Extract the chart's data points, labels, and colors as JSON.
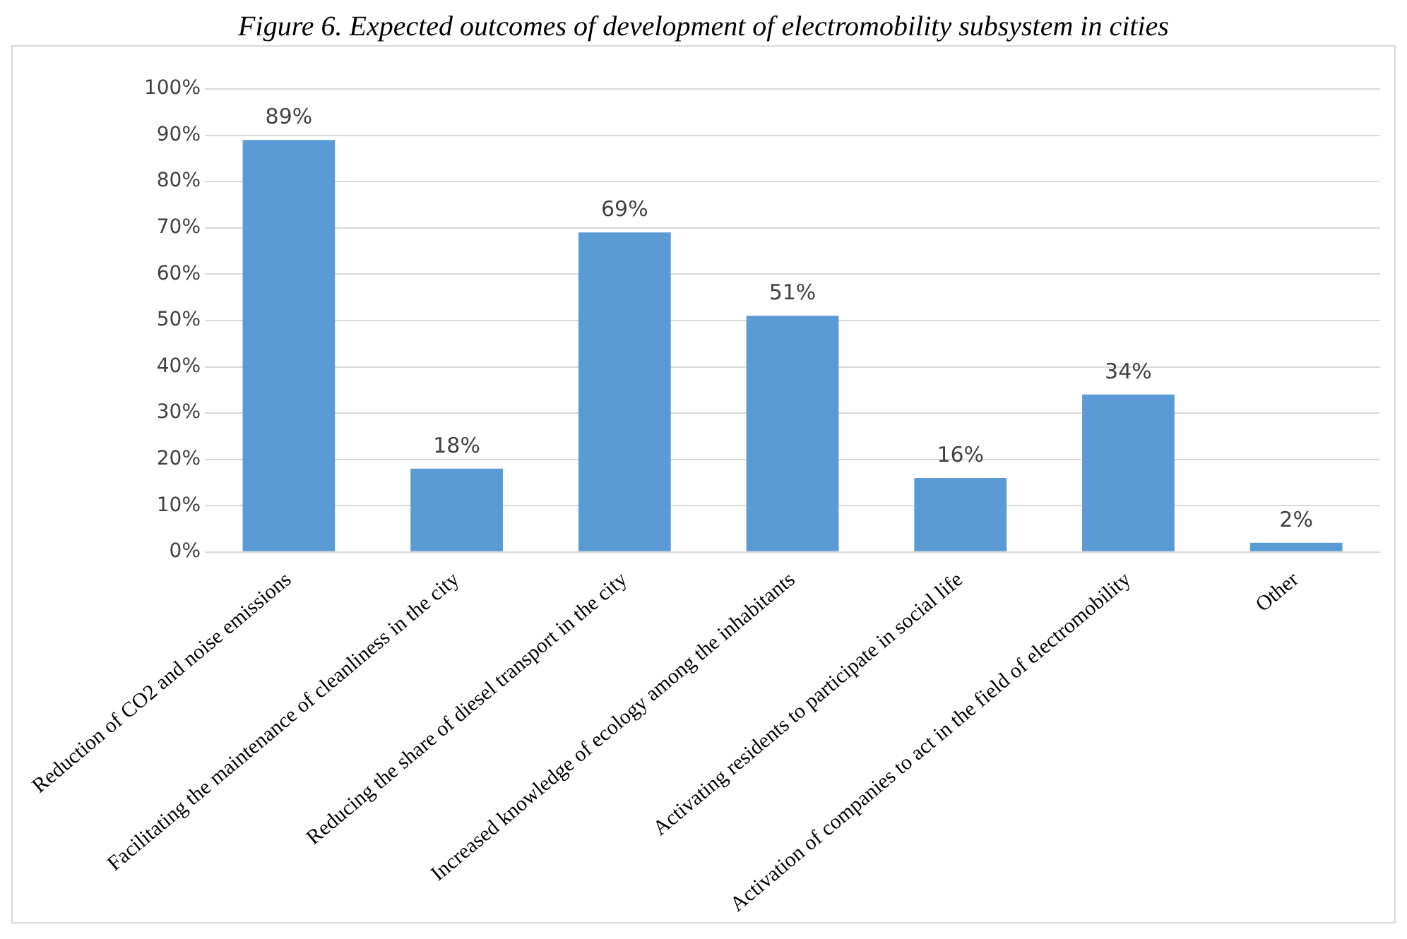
{
  "chart_data": {
    "type": "bar",
    "title": "Figure 6. Expected outcomes of development of electromobility subsystem in cities",
    "categories": [
      "Reduction of CO2 and noise emissions",
      "Facilitating the maintenance of cleanliness in the city",
      "Reducing the share of diesel transport in the city",
      "Increased knowledge of ecology among the inhabitants",
      "Activating residents to participate in social life",
      "Activation of companies to act in the field of electromobility",
      "Other"
    ],
    "values": [
      89,
      18,
      69,
      51,
      16,
      34,
      2
    ],
    "value_labels": [
      "89%",
      "18%",
      "69%",
      "51%",
      "16%",
      "34%",
      "2%"
    ],
    "color": "#5b9bd5",
    "ylim": [
      0,
      100
    ],
    "yticks": [
      {
        "value": 0,
        "label": "0%"
      },
      {
        "value": 10,
        "label": "10%"
      },
      {
        "value": 20,
        "label": "20%"
      },
      {
        "value": 30,
        "label": "30%"
      },
      {
        "value": 40,
        "label": "40%"
      },
      {
        "value": 50,
        "label": "50%"
      },
      {
        "value": 60,
        "label": "60%"
      },
      {
        "value": 70,
        "label": "70%"
      },
      {
        "value": 80,
        "label": "80%"
      },
      {
        "value": 90,
        "label": "90%"
      },
      {
        "value": 100,
        "label": "100%"
      }
    ],
    "grid": "y",
    "legend": false
  }
}
